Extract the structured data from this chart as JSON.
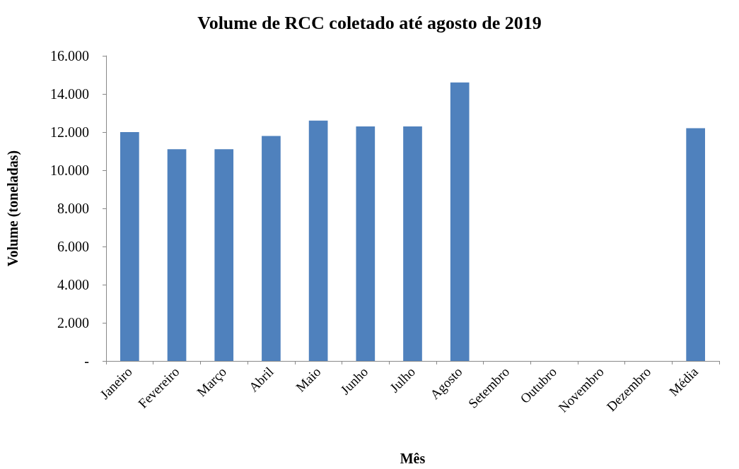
{
  "chart_data": {
    "type": "bar",
    "title": "Volume de RCC coletado até agosto de 2019",
    "xlabel": "Mês",
    "ylabel": "Volume (toneladas)",
    "categories": [
      "Janeiro",
      "Fevereiro",
      "Março",
      "Abril",
      "Maio",
      "Junho",
      "Julho",
      "Agosto",
      "Setembro",
      "Outubro",
      "Novembro",
      "Dezembro",
      "Média"
    ],
    "values": [
      12000,
      11100,
      11100,
      11800,
      12600,
      12300,
      12300,
      14600,
      null,
      null,
      null,
      null,
      12200
    ],
    "color": "#4f81bd",
    "ylim": [
      0,
      16000
    ],
    "yticks": [
      {
        "value": 0,
        "label": "-"
      },
      {
        "value": 2000,
        "label": "2.000"
      },
      {
        "value": 4000,
        "label": "4.000"
      },
      {
        "value": 6000,
        "label": "6.000"
      },
      {
        "value": 8000,
        "label": "8.000"
      },
      {
        "value": 10000,
        "label": "10.000"
      },
      {
        "value": 12000,
        "label": "12.000"
      },
      {
        "value": 14000,
        "label": "14.000"
      },
      {
        "value": 16000,
        "label": "16.000"
      }
    ],
    "grid": false
  }
}
